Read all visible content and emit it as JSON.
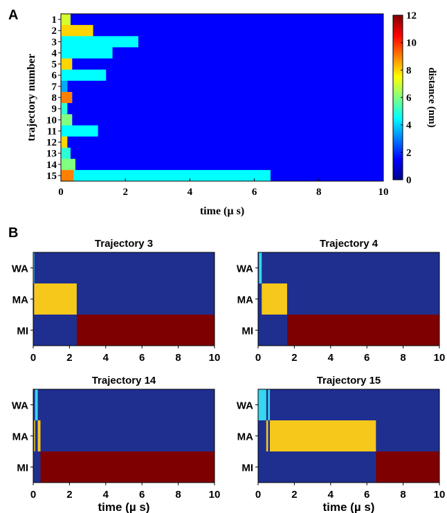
{
  "colors": {
    "deep_blue": "#1f2f8f",
    "blue": "#1a3fd6",
    "cyan": "#36d7ef",
    "yellow": "#f6c81c",
    "dark_red": "#7f0000",
    "colormap": [
      "#00008f",
      "#0000ff",
      "#0080ff",
      "#00ffff",
      "#80ff80",
      "#ffff00",
      "#ff8000",
      "#ff0000",
      "#800000"
    ]
  },
  "panels": {
    "A_label": "A",
    "B_label": "B"
  },
  "chart_data": [
    {
      "type": "heatmap",
      "panel": "A",
      "xlabel": "time (µ s)",
      "ylabel": "trajectory number",
      "xlim": [
        0,
        10
      ],
      "xticks": [
        0,
        2,
        4,
        6,
        8,
        10
      ],
      "colorbar": {
        "label": "distance (nm)",
        "range": [
          0,
          12
        ],
        "ticks": [
          0,
          2,
          4,
          6,
          8,
          10,
          12
        ]
      },
      "rows": [
        {
          "label": "1",
          "segments": [
            {
              "t0": 0,
              "t1": 0.3,
              "value": 7
            },
            {
              "t0": 0.3,
              "t1": 10,
              "value": 1.5
            }
          ]
        },
        {
          "label": "2",
          "segments": [
            {
              "t0": 0,
              "t1": 1.0,
              "value": 8
            },
            {
              "t0": 1.0,
              "t1": 10,
              "value": 1.5
            }
          ]
        },
        {
          "label": "3",
          "segments": [
            {
              "t0": 0,
              "t1": 2.4,
              "value": 4.5
            },
            {
              "t0": 2.4,
              "t1": 10,
              "value": 1.5
            }
          ]
        },
        {
          "label": "4",
          "segments": [
            {
              "t0": 0,
              "t1": 1.6,
              "value": 4.5
            },
            {
              "t0": 1.6,
              "t1": 10,
              "value": 1.5
            }
          ]
        },
        {
          "label": "5",
          "segments": [
            {
              "t0": 0,
              "t1": 0.35,
              "value": 8
            },
            {
              "t0": 0.35,
              "t1": 10,
              "value": 1.5
            }
          ]
        },
        {
          "label": "6",
          "segments": [
            {
              "t0": 0,
              "t1": 1.4,
              "value": 4.5
            },
            {
              "t0": 1.4,
              "t1": 10,
              "value": 1.5
            }
          ]
        },
        {
          "label": "7",
          "segments": [
            {
              "t0": 0,
              "t1": 0.2,
              "value": 3.5
            },
            {
              "t0": 0.2,
              "t1": 10,
              "value": 1.5
            }
          ]
        },
        {
          "label": "8",
          "segments": [
            {
              "t0": 0,
              "t1": 0.35,
              "value": 9
            },
            {
              "t0": 0.35,
              "t1": 10,
              "value": 1.5
            }
          ]
        },
        {
          "label": "9",
          "segments": [
            {
              "t0": 0,
              "t1": 0.2,
              "value": 5
            },
            {
              "t0": 0.2,
              "t1": 10,
              "value": 1.5
            }
          ]
        },
        {
          "label": "10",
          "segments": [
            {
              "t0": 0,
              "t1": 0.35,
              "value": 6
            },
            {
              "t0": 0.35,
              "t1": 10,
              "value": 1.5
            }
          ]
        },
        {
          "label": "11",
          "segments": [
            {
              "t0": 0,
              "t1": 1.15,
              "value": 4.5
            },
            {
              "t0": 1.15,
              "t1": 10,
              "value": 1.5
            }
          ]
        },
        {
          "label": "12",
          "segments": [
            {
              "t0": 0,
              "t1": 0.2,
              "value": 8
            },
            {
              "t0": 0.2,
              "t1": 10,
              "value": 1.5
            }
          ]
        },
        {
          "label": "13",
          "segments": [
            {
              "t0": 0,
              "t1": 0.3,
              "value": 5
            },
            {
              "t0": 0.3,
              "t1": 10,
              "value": 1.5
            }
          ]
        },
        {
          "label": "14",
          "segments": [
            {
              "t0": 0,
              "t1": 0.45,
              "value": 6
            },
            {
              "t0": 0.45,
              "t1": 10,
              "value": 1.5
            }
          ]
        },
        {
          "label": "15",
          "segments": [
            {
              "t0": 0,
              "t1": 0.4,
              "value": 9
            },
            {
              "t0": 0.4,
              "t1": 6.5,
              "value": 4.5
            },
            {
              "t0": 6.5,
              "t1": 10,
              "value": 1.5
            }
          ]
        }
      ]
    },
    {
      "type": "heatmap",
      "panel": "B",
      "title": "Trajectory 3",
      "xlabel": "",
      "xlim": [
        0,
        10
      ],
      "xticks": [
        0,
        2,
        4,
        6,
        8,
        10
      ],
      "rows": [
        {
          "label": "WA",
          "segments": [
            {
              "t0": 0,
              "t1": 0.05,
              "state": "cyan"
            }
          ]
        },
        {
          "label": "MA",
          "segments": [
            {
              "t0": 0.05,
              "t1": 2.4,
              "state": "yellow"
            }
          ]
        },
        {
          "label": "MI",
          "segments": [
            {
              "t0": 2.4,
              "t1": 10,
              "state": "dark_red"
            }
          ]
        }
      ]
    },
    {
      "type": "heatmap",
      "panel": "B",
      "title": "Trajectory 4",
      "xlabel": "",
      "xlim": [
        0,
        10
      ],
      "xticks": [
        0,
        2,
        4,
        6,
        8,
        10
      ],
      "rows": [
        {
          "label": "WA",
          "segments": [
            {
              "t0": 0.05,
              "t1": 0.2,
              "state": "cyan"
            }
          ]
        },
        {
          "label": "MA",
          "segments": [
            {
              "t0": 0.2,
              "t1": 1.6,
              "state": "yellow"
            }
          ]
        },
        {
          "label": "MI",
          "segments": [
            {
              "t0": 1.6,
              "t1": 10,
              "state": "dark_red"
            }
          ]
        }
      ]
    },
    {
      "type": "heatmap",
      "panel": "B",
      "title": "Trajectory 14",
      "xlabel": "time (µ s)",
      "xlim": [
        0,
        10
      ],
      "xticks": [
        0,
        2,
        4,
        6,
        8,
        10
      ],
      "rows": [
        {
          "label": "WA",
          "segments": [
            {
              "t0": 0.1,
              "t1": 0.25,
              "state": "cyan"
            }
          ]
        },
        {
          "label": "MA",
          "segments": [
            {
              "t0": 0.05,
              "t1": 0.1,
              "state": "yellow"
            },
            {
              "t0": 0.25,
              "t1": 0.4,
              "state": "yellow"
            }
          ]
        },
        {
          "label": "MI",
          "segments": [
            {
              "t0": 0.4,
              "t1": 10,
              "state": "dark_red"
            }
          ]
        }
      ]
    },
    {
      "type": "heatmap",
      "panel": "B",
      "title": "Trajectory 15",
      "xlabel": "time (µ s)",
      "xlim": [
        0,
        10
      ],
      "xticks": [
        0,
        2,
        4,
        6,
        8,
        10
      ],
      "rows": [
        {
          "label": "WA",
          "segments": [
            {
              "t0": 0,
              "t1": 0.45,
              "state": "cyan"
            },
            {
              "t0": 0.55,
              "t1": 0.65,
              "state": "cyan"
            }
          ]
        },
        {
          "label": "MA",
          "segments": [
            {
              "t0": 0.45,
              "t1": 0.55,
              "state": "yellow"
            },
            {
              "t0": 0.65,
              "t1": 6.5,
              "state": "yellow"
            }
          ]
        },
        {
          "label": "MI",
          "segments": [
            {
              "t0": 6.5,
              "t1": 10,
              "state": "dark_red"
            }
          ]
        }
      ]
    }
  ]
}
